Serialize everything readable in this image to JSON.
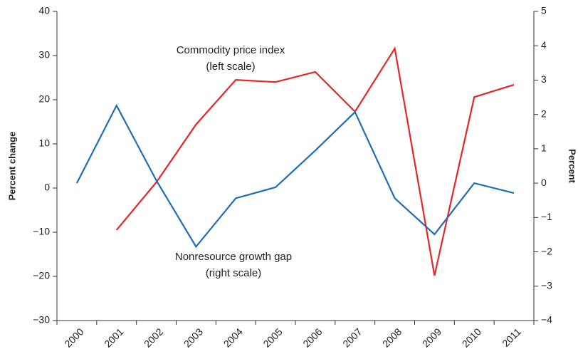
{
  "chart_data": {
    "type": "line",
    "y_label": "Percent change",
    "y2_label": "Percent",
    "categories": [
      "2000",
      "2001",
      "2002",
      "2003",
      "2004",
      "2005",
      "2006",
      "2007",
      "2008",
      "2009",
      "2010",
      "2011"
    ],
    "series": [
      {
        "name": "Commodity price index",
        "color": "#e3262a",
        "values": [
          null,
          -9.5,
          1.3,
          14.4,
          24.5,
          24.0,
          26.3,
          17.3,
          31.6,
          -19.8,
          20.6,
          23.4
        ]
      },
      {
        "name": "Nonresource growth gap",
        "color": "#1f6db5",
        "axis": "y2",
        "values": [
          0.0,
          2.26,
          0.08,
          -1.85,
          -0.44,
          -0.12,
          0.95,
          2.07,
          -0.44,
          -1.49,
          0.0,
          -0.29
        ]
      }
    ],
    "annotations": [
      {
        "lines": [
          "Commodity price index",
          "(left scale)"
        ]
      },
      {
        "lines": [
          "Nonresource growth gap",
          "(right scale)"
        ]
      }
    ],
    "ylim": [
      -30,
      40
    ],
    "yticks": [
      {
        "value": -30,
        "label": "−30"
      },
      {
        "value": -20,
        "label": "−20"
      },
      {
        "value": -10,
        "label": "−10"
      },
      0,
      10,
      20,
      30,
      40
    ],
    "y2lim": [
      -4,
      5
    ],
    "y2ticks": [
      {
        "value": -4,
        "label": "−4"
      },
      {
        "value": -3,
        "label": "−3"
      },
      {
        "value": -2,
        "label": "−2"
      },
      {
        "value": -1,
        "label": "−1"
      },
      0,
      1,
      2,
      3,
      4,
      5
    ]
  }
}
